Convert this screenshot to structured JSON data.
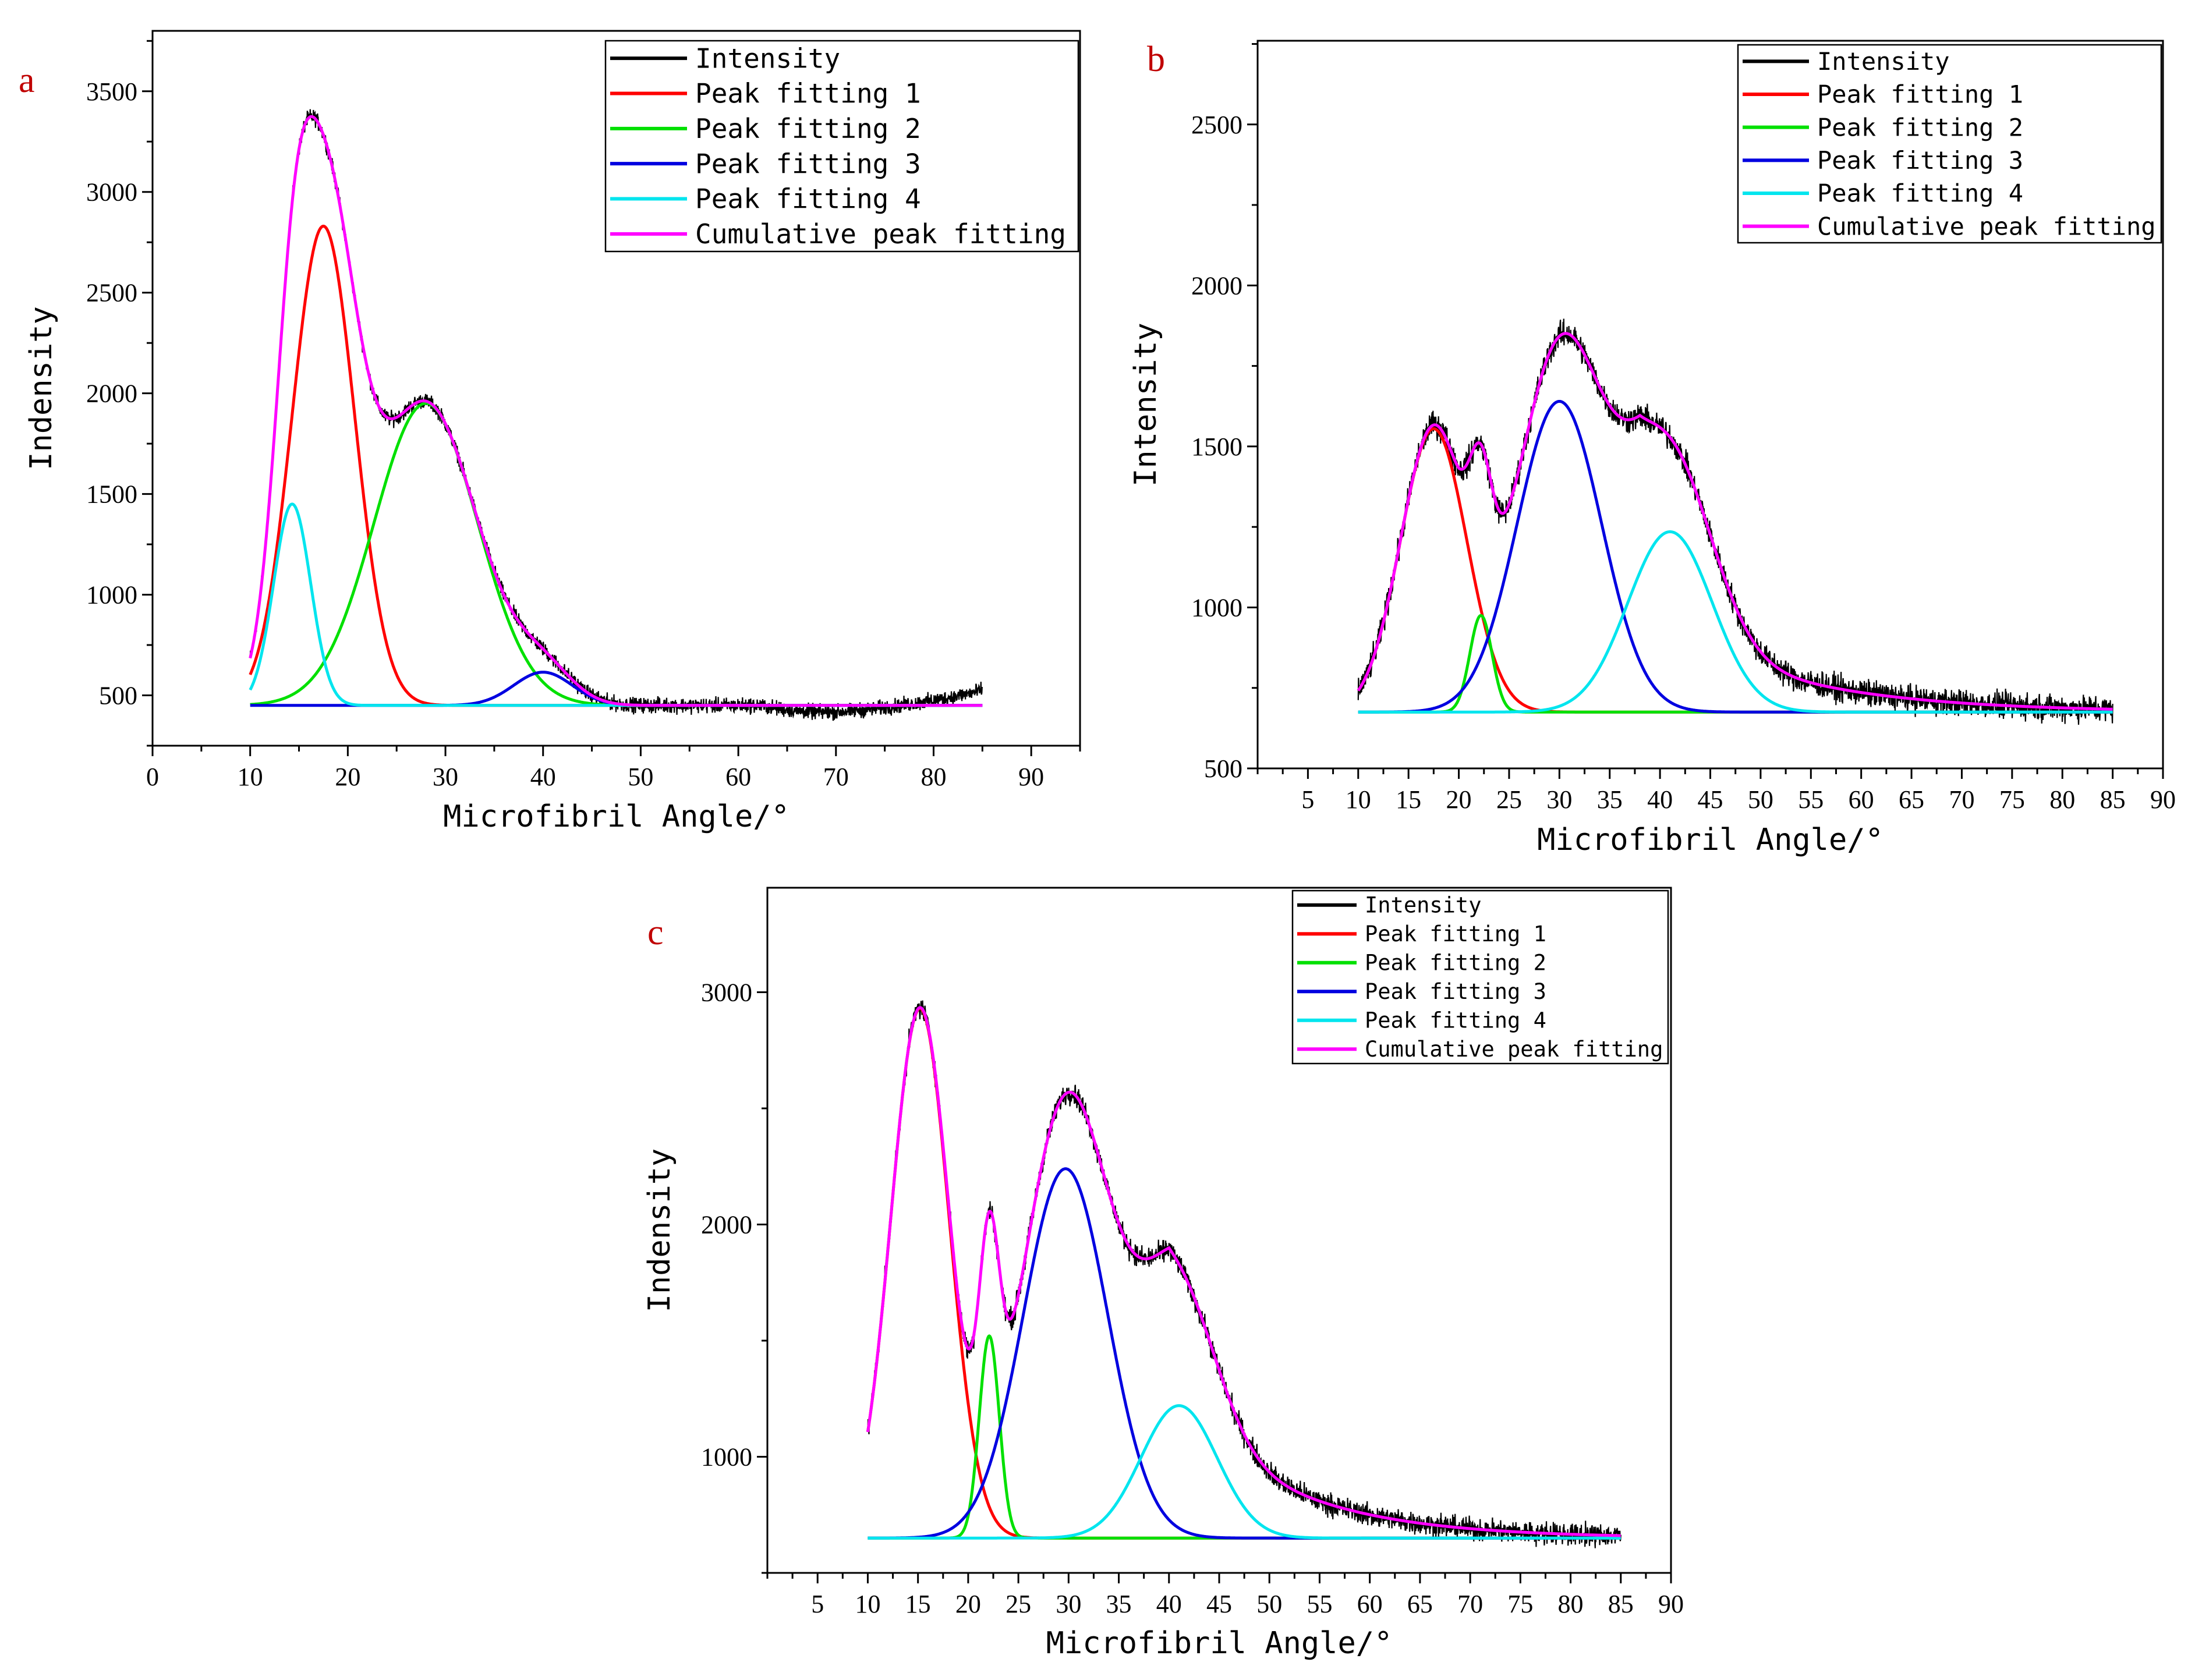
{
  "chart_data": [
    {
      "type": "line",
      "panel_label": "a",
      "xlabel": "Microfibril Angle/°",
      "ylabel": "Indensity",
      "xlim": [
        0,
        95
      ],
      "ylim": [
        250,
        3800
      ],
      "x_ticks": [
        0,
        10,
        20,
        30,
        40,
        50,
        60,
        70,
        80,
        90
      ],
      "y_ticks": [
        500,
        1000,
        1500,
        2000,
        2500,
        3000,
        3500
      ],
      "x_range": [
        10,
        85
      ],
      "baseline": 450,
      "legend_location": "top-right",
      "colors": {
        "intensity": "#000000",
        "peak1": "#ff0000",
        "peak2": "#00e000",
        "peak3": "#0000e0",
        "peak4": "#00e5ee",
        "cumulative": "#ff00ff"
      },
      "series": [
        {
          "name": "Intensity",
          "key": "intensity"
        },
        {
          "name": "Peak fitting 1",
          "key": "peak1",
          "center": 17.5,
          "amplitude": 2380,
          "sigma": 3.2
        },
        {
          "name": "Peak fitting 2",
          "key": "peak2",
          "center": 28,
          "amplitude": 1500,
          "sigma": 5.3
        },
        {
          "name": "Peak fitting 3",
          "key": "peak3",
          "center": 40,
          "amplitude": 165,
          "sigma": 3.0
        },
        {
          "name": "Peak fitting 4",
          "key": "peak4",
          "center": 14.3,
          "amplitude": 1000,
          "sigma": 1.9
        },
        {
          "name": "Cumulative peak fitting",
          "key": "cumulative"
        }
      ],
      "intensity_tail": {
        "start": 62,
        "end": 85,
        "dip": -45,
        "rise_to": 570
      },
      "noise_amplitude": 55
    },
    {
      "type": "line",
      "panel_label": "b",
      "xlabel": "Microfibril Angle/°",
      "ylabel": "Intensity",
      "xlim": [
        0,
        90
      ],
      "ylim": [
        500,
        2760
      ],
      "x_ticks": [
        5,
        10,
        15,
        20,
        25,
        30,
        35,
        40,
        45,
        50,
        55,
        60,
        65,
        70,
        75,
        80,
        85,
        90
      ],
      "y_ticks": [
        500,
        1000,
        1500,
        2000,
        2500
      ],
      "x_range": [
        10,
        85
      ],
      "baseline": 675,
      "legend_location": "top-right",
      "colors": {
        "intensity": "#000000",
        "peak1": "#ff0000",
        "peak2": "#00e000",
        "peak3": "#0000e0",
        "peak4": "#00e5ee",
        "cumulative": "#ff00ff"
      },
      "series": [
        {
          "name": "Intensity",
          "key": "intensity"
        },
        {
          "name": "Peak fitting 1",
          "key": "peak1",
          "center": 17.5,
          "amplitude": 880,
          "sigma": 3.3
        },
        {
          "name": "Peak fitting 2",
          "key": "peak2",
          "center": 22.2,
          "amplitude": 300,
          "sigma": 1.1
        },
        {
          "name": "Peak fitting 3",
          "key": "peak3",
          "center": 30,
          "amplitude": 965,
          "sigma": 4.2
        },
        {
          "name": "Peak fitting 4",
          "key": "peak4",
          "center": 41,
          "amplitude": 560,
          "sigma": 4.2
        },
        {
          "name": "Cumulative peak fitting",
          "key": "cumulative"
        }
      ],
      "tail": {
        "start": 20,
        "center": 38,
        "amplitude": 330,
        "decay": 13
      },
      "noise_amplitude": 60
    },
    {
      "type": "line",
      "panel_label": "c",
      "xlabel": "Microfibril Angle/°",
      "ylabel": "Indensity",
      "xlim": [
        0,
        90
      ],
      "ylim": [
        500,
        3450
      ],
      "x_ticks": [
        5,
        10,
        15,
        20,
        25,
        30,
        35,
        40,
        45,
        50,
        55,
        60,
        65,
        70,
        75,
        80,
        85,
        90
      ],
      "y_ticks": [
        1000,
        2000,
        3000
      ],
      "x_range": [
        10,
        85
      ],
      "baseline": 650,
      "legend_location": "top-right",
      "colors": {
        "intensity": "#000000",
        "peak1": "#ff0000",
        "peak2": "#00e000",
        "peak3": "#0000e0",
        "peak4": "#00e5ee",
        "cumulative": "#ff00ff"
      },
      "series": [
        {
          "name": "Intensity",
          "key": "intensity"
        },
        {
          "name": "Peak fitting 1",
          "key": "peak1",
          "center": 15.2,
          "amplitude": 2280,
          "sigma": 2.9
        },
        {
          "name": "Peak fitting 2",
          "key": "peak2",
          "center": 22.1,
          "amplitude": 870,
          "sigma": 1.0
        },
        {
          "name": "Peak fitting 3",
          "key": "peak3",
          "center": 29.7,
          "amplitude": 1590,
          "sigma": 4.2
        },
        {
          "name": "Peak fitting 4",
          "key": "peak4",
          "center": 41,
          "amplitude": 570,
          "sigma": 3.8
        },
        {
          "name": "Cumulative peak fitting",
          "key": "cumulative"
        }
      ],
      "tail": {
        "start": 19,
        "center": 40,
        "amplitude": 620,
        "decay": 11
      },
      "noise_amplitude": 70
    }
  ]
}
